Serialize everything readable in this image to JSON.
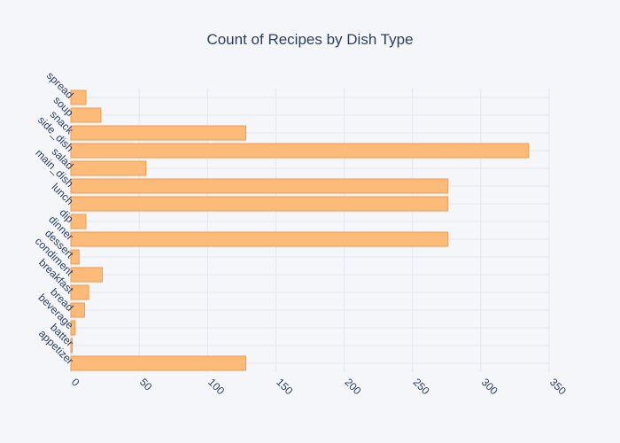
{
  "chart_data": {
    "type": "bar",
    "orientation": "horizontal",
    "title": "Count of Recipes by Dish Type",
    "xlabel": "",
    "ylabel": "",
    "categories": [
      "appetizer",
      "batter",
      "beverage",
      "bread",
      "breakfast",
      "condiment",
      "dessert",
      "dinner",
      "dip",
      "lunch",
      "main_dish",
      "salad",
      "side_dish",
      "snack",
      "soup",
      "spread"
    ],
    "values": [
      128,
      1,
      3,
      10,
      13,
      23,
      6,
      276,
      11,
      276,
      276,
      55,
      335,
      128,
      22,
      11
    ],
    "xlim": [
      0,
      350
    ],
    "x_ticks": [
      0,
      50,
      100,
      150,
      200,
      250,
      300,
      350
    ],
    "grid": true,
    "bar_color": "#fdbb7a",
    "bar_edge_color": "#f79a45",
    "background": "#f5f6fa"
  }
}
